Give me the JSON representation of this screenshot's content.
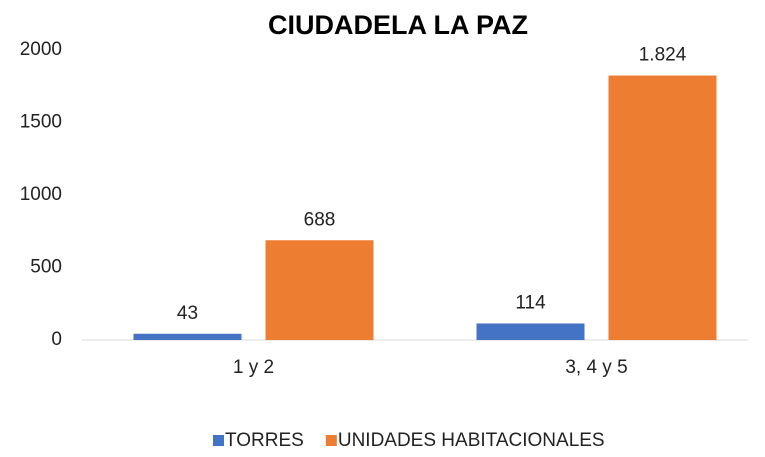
{
  "chart_data": {
    "type": "bar",
    "title": "CIUDADELA LA PAZ",
    "categories": [
      "1 y 2",
      "3, 4 y 5"
    ],
    "series": [
      {
        "name": "TORRES",
        "color": "#4472c4",
        "values": [
          43,
          114
        ],
        "value_labels": [
          "43",
          "114"
        ]
      },
      {
        "name": "UNIDADES HABITACIONALES",
        "color": "#ed7d31",
        "values": [
          688,
          1824
        ],
        "value_labels": [
          "688",
          "1.824"
        ]
      }
    ],
    "ylim": [
      0,
      2000
    ],
    "yticks": [
      0,
      500,
      1000,
      1500,
      2000
    ],
    "grid": false,
    "legend": "bottom"
  }
}
